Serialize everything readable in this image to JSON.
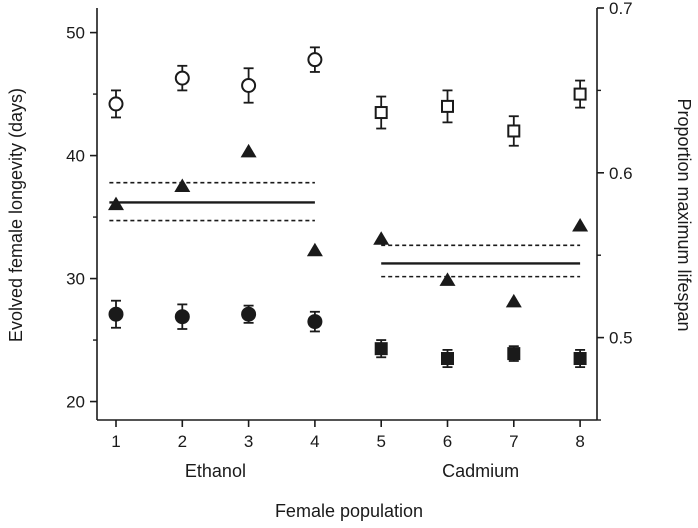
{
  "chart_data": {
    "type": "scatter",
    "xlabel": "Female population",
    "ylabel_left": "Evolved female longevity (days)",
    "ylabel_right": "Proportion maximum lifespan",
    "x_ticks": [
      1,
      2,
      3,
      4,
      5,
      6,
      7,
      8
    ],
    "y_left": {
      "range": [
        18.5,
        52
      ],
      "ticks": [
        20,
        30,
        40,
        50
      ]
    },
    "y_right": {
      "range": [
        0.45,
        0.7
      ],
      "ticks": [
        0.5,
        0.6,
        0.7
      ],
      "tick_labels": [
        "0.5",
        "0.6",
        "0.7"
      ]
    },
    "groups": [
      {
        "label": "Ethanol",
        "x_from": 1,
        "x_to": 4
      },
      {
        "label": "Cadmium",
        "x_from": 5,
        "x_to": 8
      }
    ],
    "series": [
      {
        "marker": "open-circle",
        "axis": "left",
        "x": [
          1,
          2,
          3,
          4
        ],
        "y": [
          44.2,
          46.3,
          45.7,
          47.8
        ],
        "err": [
          1.1,
          1.0,
          1.4,
          1.0
        ]
      },
      {
        "marker": "open-square",
        "axis": "left",
        "x": [
          5,
          6,
          7,
          8
        ],
        "y": [
          43.5,
          44.0,
          42.0,
          45.0
        ],
        "err": [
          1.3,
          1.3,
          1.2,
          1.1
        ]
      },
      {
        "marker": "filled-circle",
        "axis": "left",
        "x": [
          1,
          2,
          3,
          4
        ],
        "y": [
          27.1,
          26.9,
          27.1,
          26.5
        ],
        "err": [
          1.1,
          1.0,
          0.7,
          0.8
        ]
      },
      {
        "marker": "filled-square",
        "axis": "left",
        "x": [
          5,
          6,
          7,
          8
        ],
        "y": [
          24.3,
          23.5,
          23.9,
          23.5
        ],
        "err": [
          0.7,
          0.7,
          0.6,
          0.7
        ]
      },
      {
        "marker": "filled-triangle",
        "axis": "right",
        "x": [
          1,
          2,
          3,
          4,
          5,
          6,
          7,
          8
        ],
        "y": [
          0.581,
          0.592,
          0.613,
          0.553,
          0.56,
          0.535,
          0.522,
          0.568
        ]
      }
    ],
    "reference_lines": [
      {
        "axis": "right",
        "x_from": 0.9,
        "x_to": 4.0,
        "mean": 0.582,
        "lower": 0.571,
        "upper": 0.594
      },
      {
        "axis": "right",
        "x_from": 5.0,
        "x_to": 8.0,
        "mean": 0.545,
        "lower": 0.537,
        "upper": 0.556
      }
    ],
    "grid": false,
    "legend": "none",
    "colors": {
      "ink": "#1a1a1a",
      "background": "#ffffff"
    }
  }
}
